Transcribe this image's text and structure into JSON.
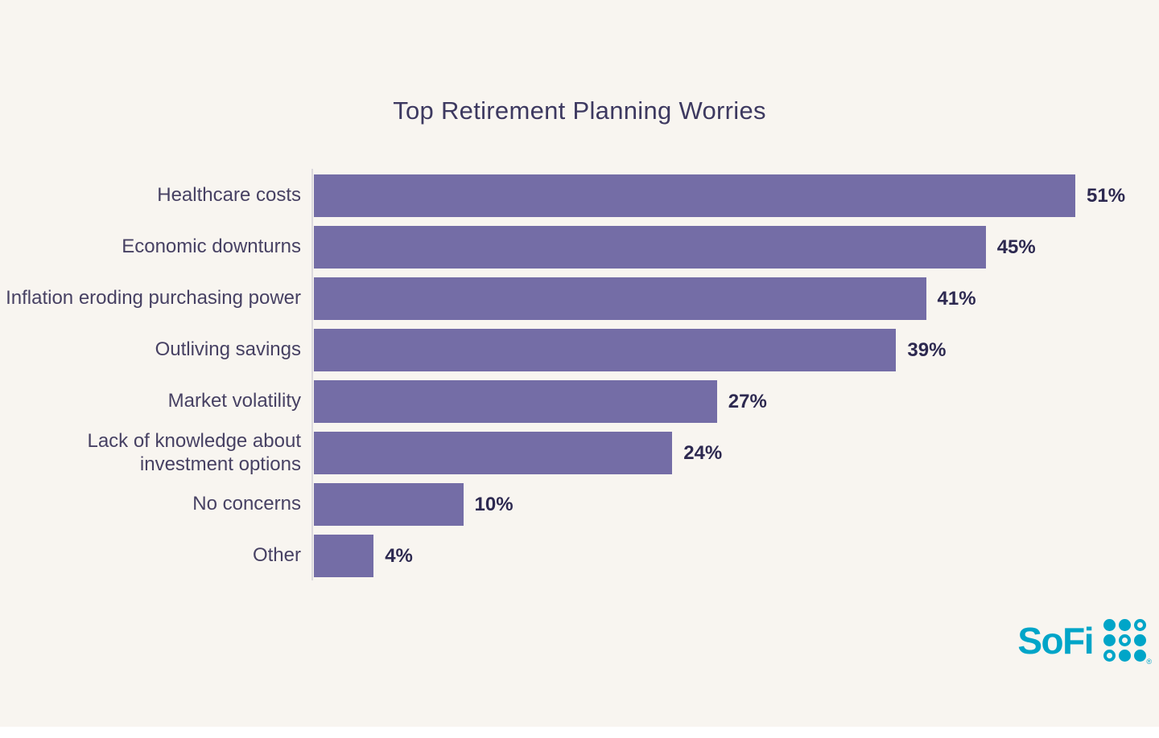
{
  "chart_data": {
    "type": "bar",
    "orientation": "horizontal",
    "title": "Top Retirement Planning Worries",
    "categories": [
      "Healthcare costs",
      "Economic downturns",
      "Inflation eroding purchasing power",
      "Outliving savings",
      "Market volatility",
      "Lack of knowledge about investment options",
      "No concerns",
      "Other"
    ],
    "values": [
      51,
      45,
      41,
      39,
      27,
      24,
      10,
      4
    ],
    "value_labels": [
      "51%",
      "45%",
      "41%",
      "39%",
      "27%",
      "24%",
      "10%",
      "4%"
    ],
    "value_suffix": "%",
    "xlim": [
      0,
      55
    ],
    "grid": false,
    "legend": false,
    "bar_color": "#746da6"
  },
  "colors": {
    "background": "#f8f5f0",
    "bar": "#746da6",
    "title": "#3d3960",
    "label": "#474163",
    "value": "#2d2950",
    "axis": "#dcd9dd",
    "logo": "#00a5c8"
  },
  "branding": {
    "logo_text": "SoFi",
    "registered_mark": "®",
    "dot_pattern": [
      [
        "filled",
        "filled",
        "ring"
      ],
      [
        "filled",
        "ring",
        "filled"
      ],
      [
        "ring",
        "filled",
        "filled"
      ]
    ]
  }
}
